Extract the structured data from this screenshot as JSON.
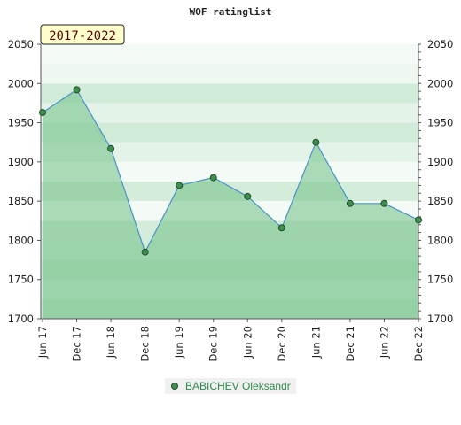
{
  "chart_data": {
    "type": "area",
    "title": "WOF ratinglist",
    "badge": "2017-2022",
    "categories": [
      "Jun 17",
      "Dec 17",
      "Jun 18",
      "Dec 18",
      "Jun 19",
      "Dec 19",
      "Jun 20",
      "Dec 20",
      "Jun 21",
      "Dec 21",
      "Jun 22",
      "Dec 22"
    ],
    "series": [
      {
        "name": "BABICHEV Oleksandr",
        "values": [
          1963,
          1992,
          1917,
          1785,
          1870,
          1880,
          1856,
          1816,
          1925,
          1847,
          1847,
          1826
        ]
      }
    ],
    "ylim": [
      1700,
      2050
    ],
    "yticks": [
      1700,
      1750,
      1800,
      1850,
      1900,
      1950,
      2000,
      2050
    ],
    "y_axis_both_sides": true,
    "grid": true,
    "legend_position": "bottom-center",
    "colors": {
      "fill": "#6fbf85",
      "line": "#4a90c8",
      "marker": "#3f8f4f",
      "band_dark": "#8fcfa0",
      "band_light": "#e8f5ec",
      "badge_bg": "#ffffcc"
    }
  }
}
